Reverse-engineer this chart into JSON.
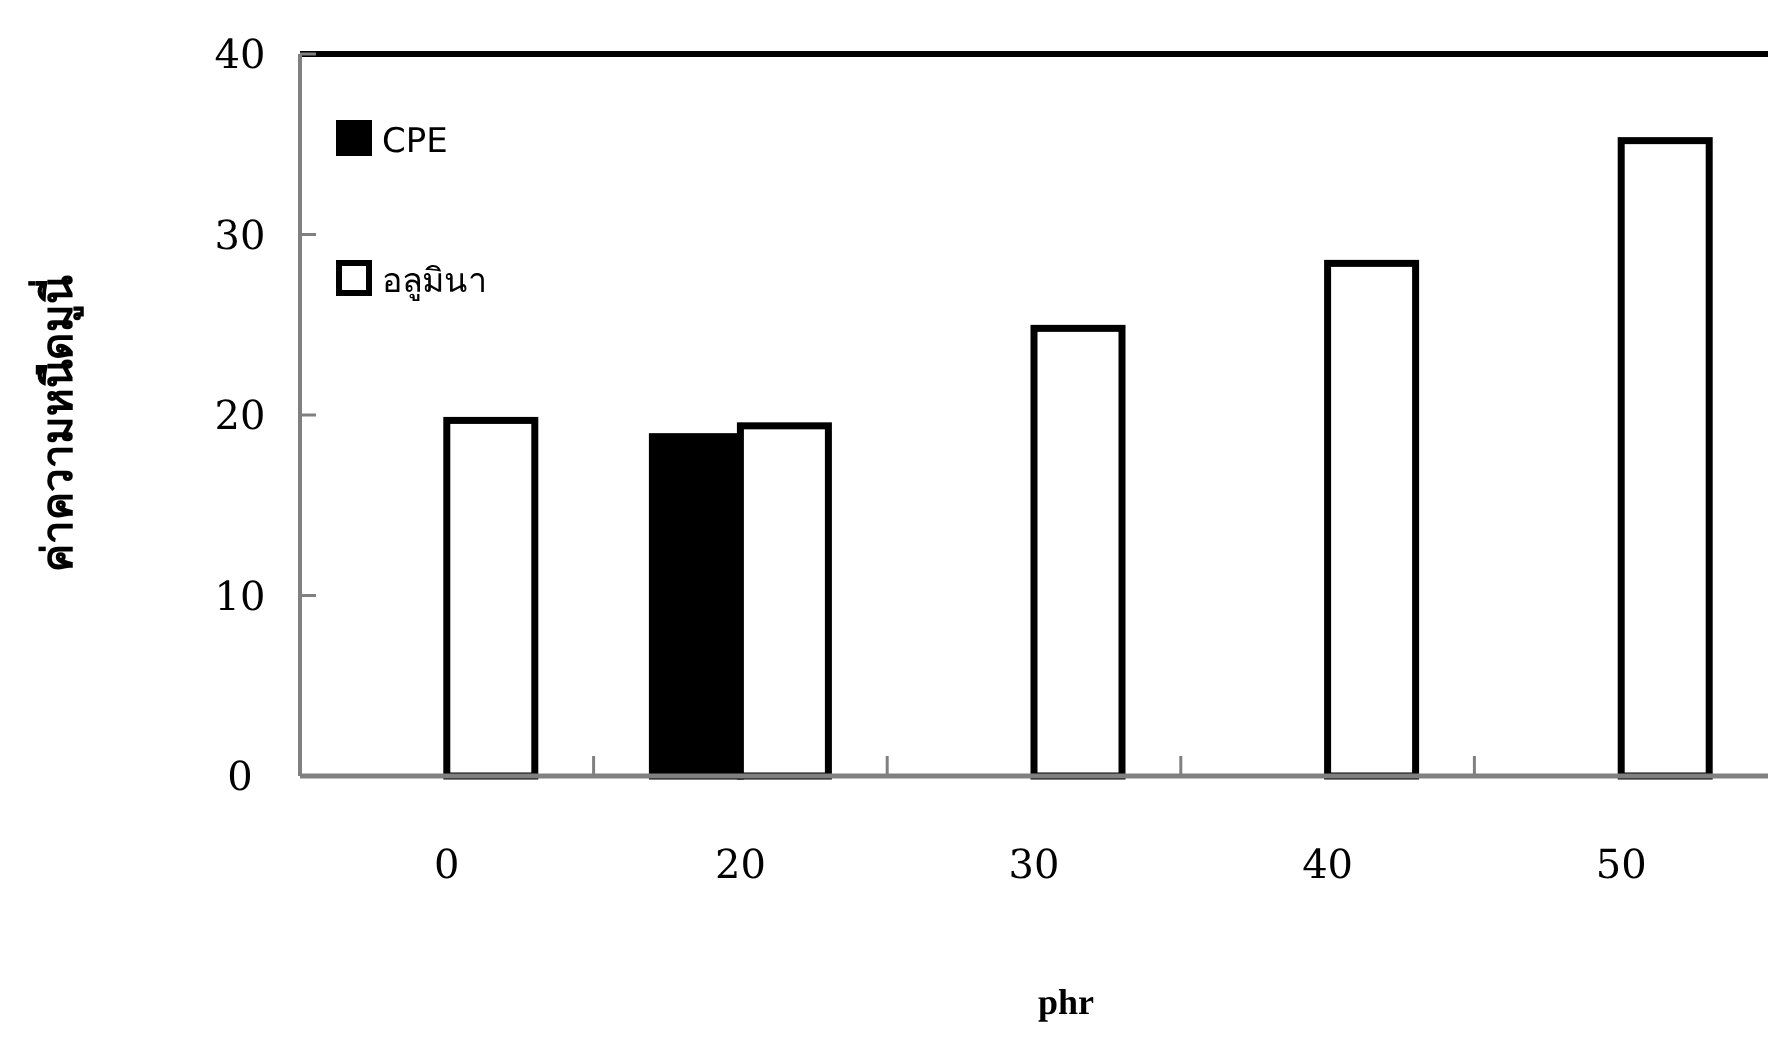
{
  "chart_data": {
    "type": "bar",
    "xlabel": "phr",
    "ylabel": "ค่าความหนืดมูนี่",
    "categories": [
      "0",
      "20",
      "30",
      "40",
      "50"
    ],
    "series": [
      {
        "name": "CPE",
        "color": "#000000",
        "values": [
          null,
          18.8,
          null,
          null,
          null
        ]
      },
      {
        "name": "อลูมินา",
        "color": "#ffffff",
        "values": [
          19.7,
          19.4,
          24.8,
          28.4,
          35.2
        ]
      }
    ],
    "ylim": [
      0,
      40
    ],
    "yticks": [
      0,
      10,
      20,
      30,
      40
    ],
    "legend": "top left"
  }
}
